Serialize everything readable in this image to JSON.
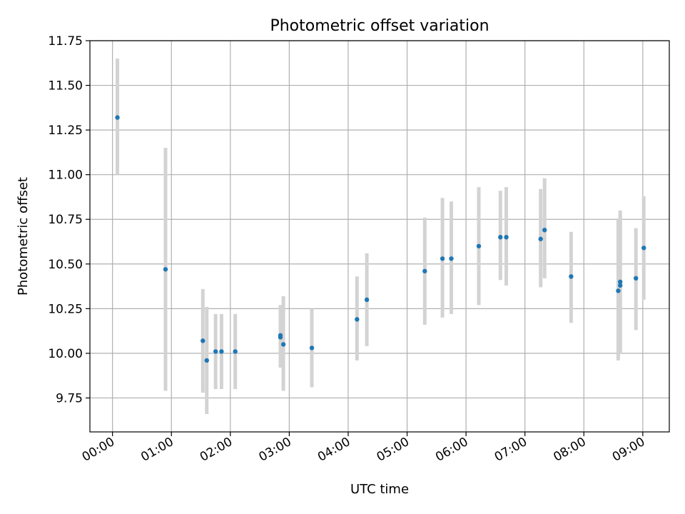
{
  "chart_data": {
    "type": "scatter",
    "title": "Photometric offset variation",
    "xlabel": "UTC time",
    "ylabel": "Photometric offset",
    "xlim": [
      "23:37",
      "09:27"
    ],
    "ylim": [
      9.56,
      11.75
    ],
    "grid": true,
    "x_ticks": [
      "00:00",
      "01:00",
      "02:00",
      "03:00",
      "04:00",
      "05:00",
      "06:00",
      "07:00",
      "08:00",
      "09:00"
    ],
    "y_ticks": [
      "9.75",
      "10.00",
      "10.25",
      "10.50",
      "10.75",
      "11.00",
      "11.25",
      "11.50",
      "11.75"
    ],
    "marker_color": "#1f77b4",
    "errorbar_color": "#d3d3d3",
    "series": [
      {
        "points": [
          {
            "x": "00:05",
            "y": 11.32,
            "ylow": 11.0,
            "yhigh": 11.65
          },
          {
            "x": "00:54",
            "y": 10.47,
            "ylow": 9.79,
            "yhigh": 11.15
          },
          {
            "x": "01:32",
            "y": 10.07,
            "ylow": 9.78,
            "yhigh": 10.36
          },
          {
            "x": "01:36",
            "y": 9.96,
            "ylow": 9.66,
            "yhigh": 10.26
          },
          {
            "x": "01:45",
            "y": 10.01,
            "ylow": 9.8,
            "yhigh": 10.22
          },
          {
            "x": "01:51",
            "y": 10.01,
            "ylow": 9.8,
            "yhigh": 10.22
          },
          {
            "x": "02:05",
            "y": 10.01,
            "ylow": 9.8,
            "yhigh": 10.22
          },
          {
            "x": "02:51",
            "y": 10.1,
            "ylow": 9.92,
            "yhigh": 10.27
          },
          {
            "x": "02:51",
            "y": 10.09,
            "ylow": 9.92,
            "yhigh": 10.27
          },
          {
            "x": "02:54",
            "y": 10.05,
            "ylow": 9.79,
            "yhigh": 10.32
          },
          {
            "x": "03:23",
            "y": 10.03,
            "ylow": 9.81,
            "yhigh": 10.25
          },
          {
            "x": "04:09",
            "y": 10.19,
            "ylow": 9.96,
            "yhigh": 10.43
          },
          {
            "x": "04:19",
            "y": 10.3,
            "ylow": 10.04,
            "yhigh": 10.56
          },
          {
            "x": "05:18",
            "y": 10.46,
            "ylow": 10.16,
            "yhigh": 10.76
          },
          {
            "x": "05:36",
            "y": 10.53,
            "ylow": 10.2,
            "yhigh": 10.87
          },
          {
            "x": "05:45",
            "y": 10.53,
            "ylow": 10.22,
            "yhigh": 10.85
          },
          {
            "x": "06:13",
            "y": 10.6,
            "ylow": 10.27,
            "yhigh": 10.93
          },
          {
            "x": "06:35",
            "y": 10.65,
            "ylow": 10.41,
            "yhigh": 10.91
          },
          {
            "x": "06:41",
            "y": 10.65,
            "ylow": 10.38,
            "yhigh": 10.93
          },
          {
            "x": "07:16",
            "y": 10.64,
            "ylow": 10.37,
            "yhigh": 10.92
          },
          {
            "x": "07:20",
            "y": 10.69,
            "ylow": 10.42,
            "yhigh": 10.98
          },
          {
            "x": "07:47",
            "y": 10.43,
            "ylow": 10.17,
            "yhigh": 10.68
          },
          {
            "x": "08:35",
            "y": 10.35,
            "ylow": 9.96,
            "yhigh": 10.75
          },
          {
            "x": "08:37",
            "y": 10.38,
            "ylow": 10.0,
            "yhigh": 10.77
          },
          {
            "x": "08:37",
            "y": 10.4,
            "ylow": 10.01,
            "yhigh": 10.8
          },
          {
            "x": "08:53",
            "y": 10.42,
            "ylow": 10.13,
            "yhigh": 10.7
          },
          {
            "x": "09:01",
            "y": 10.59,
            "ylow": 10.3,
            "yhigh": 10.88
          }
        ]
      }
    ]
  }
}
